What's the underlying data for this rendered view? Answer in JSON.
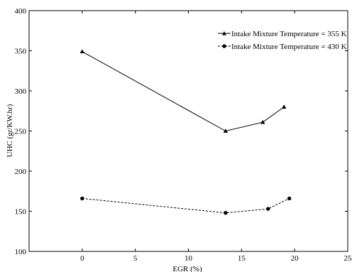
{
  "chart_data": {
    "type": "line",
    "title": "",
    "xlabel": "EGR (%)",
    "ylabel": "UHC (gr/KW.hr)",
    "xlim": [
      -5,
      25
    ],
    "ylim": [
      100,
      400
    ],
    "xticks": [
      0,
      5,
      10,
      15,
      20,
      25
    ],
    "yticks": [
      100,
      150,
      200,
      250,
      300,
      350,
      400
    ],
    "grid": false,
    "legend_position": "top-right",
    "series": [
      {
        "name": "Intake Mixture Temperature = 355 K",
        "marker": "triangle",
        "line_style": "solid",
        "color": "#000000",
        "x": [
          0,
          13.5,
          17,
          19
        ],
        "y": [
          349,
          250,
          261,
          280
        ]
      },
      {
        "name": "Intake Mixture Temperature = 430 K",
        "marker": "circle",
        "line_style": "dashed",
        "color": "#000000",
        "x": [
          0,
          13.5,
          17.5,
          19.5
        ],
        "y": [
          166,
          148,
          153,
          166
        ]
      }
    ]
  }
}
